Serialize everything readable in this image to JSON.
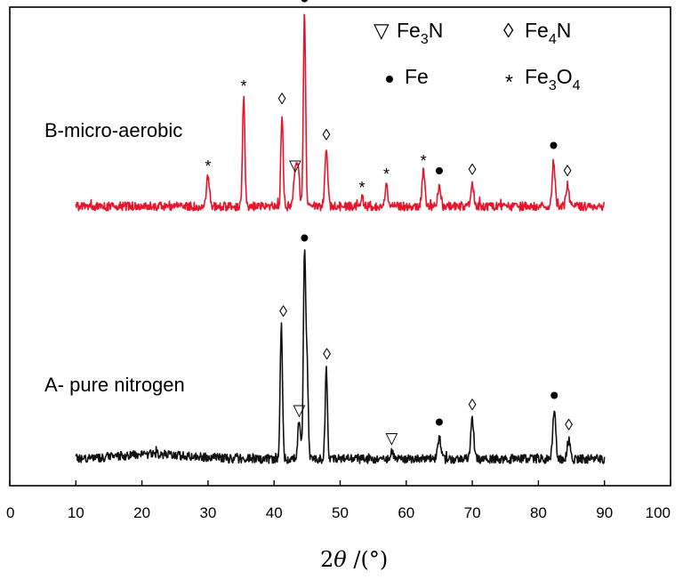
{
  "chart_data": {
    "type": "line",
    "xlabel": "2θ/(°)",
    "xlim": [
      0,
      100
    ],
    "xticks": [
      0,
      10,
      20,
      30,
      40,
      50,
      60,
      70,
      80,
      90,
      100
    ],
    "y_axis": "intensity (no scale shown)",
    "grid": false,
    "legend": {
      "placement": "top-right",
      "items": [
        {
          "symbol": "triangle-down",
          "label": "Fe3N"
        },
        {
          "symbol": "diamond",
          "label": "Fe4N"
        },
        {
          "symbol": "dot",
          "label": "Fe"
        },
        {
          "symbol": "asterisk",
          "label": "Fe3O4"
        }
      ]
    },
    "series": [
      {
        "name": "B-micro-aerobic",
        "color": "#e8142c",
        "x_range": [
          10,
          90
        ],
        "peaks": [
          {
            "x": 30.0,
            "height": 0.22,
            "phase": "Fe3O4"
          },
          {
            "x": 35.4,
            "height": 0.82,
            "phase": "Fe3O4"
          },
          {
            "x": 41.2,
            "height": 0.7,
            "phase": "Fe4N"
          },
          {
            "x": 43.2,
            "height": 0.22,
            "phase": "Fe3N"
          },
          {
            "x": 43.6,
            "height": 0.28
          },
          {
            "x": 44.6,
            "height": 1.45,
            "phase": "Fe"
          },
          {
            "x": 47.9,
            "height": 0.43,
            "phase": "Fe4N"
          },
          {
            "x": 53.3,
            "height": 0.06,
            "phase": "Fe3O4"
          },
          {
            "x": 57.0,
            "height": 0.16,
            "phase": "Fe3O4"
          },
          {
            "x": 62.6,
            "height": 0.26,
            "phase": "Fe3O4"
          },
          {
            "x": 65.0,
            "height": 0.16,
            "phase": "Fe"
          },
          {
            "x": 70.0,
            "height": 0.17,
            "phase": "Fe4N"
          },
          {
            "x": 82.3,
            "height": 0.35,
            "phase": "Fe"
          },
          {
            "x": 84.4,
            "height": 0.16,
            "phase": "Fe4N"
          }
        ],
        "annotations": [
          {
            "x": 30.0,
            "phase": "Fe3O4"
          },
          {
            "x": 35.4,
            "phase": "Fe3O4"
          },
          {
            "x": 41.2,
            "phase": "Fe4N"
          },
          {
            "x": 43.2,
            "phase": "Fe3N"
          },
          {
            "x": 44.6,
            "phase": "Fe"
          },
          {
            "x": 47.9,
            "phase": "Fe4N"
          },
          {
            "x": 53.3,
            "phase": "Fe3O4"
          },
          {
            "x": 57.0,
            "phase": "Fe3O4"
          },
          {
            "x": 62.6,
            "phase": "Fe3O4"
          },
          {
            "x": 65.0,
            "phase": "Fe"
          },
          {
            "x": 70.0,
            "phase": "Fe4N"
          },
          {
            "x": 82.3,
            "phase": "Fe"
          },
          {
            "x": 84.4,
            "phase": "Fe4N"
          }
        ]
      },
      {
        "name": "A- pure nitrogen",
        "color": "#111111",
        "x_range": [
          10,
          90
        ],
        "peaks": [
          {
            "x": 41.1,
            "height": 1.0,
            "phase": "Fe4N"
          },
          {
            "x": 43.8,
            "height": 0.28,
            "phase": "Fe3N"
          },
          {
            "x": 44.6,
            "height": 1.55,
            "phase": "Fe"
          },
          {
            "x": 45.0,
            "height": 0.7
          },
          {
            "x": 47.9,
            "height": 0.68,
            "phase": "Fe4N"
          },
          {
            "x": 57.8,
            "height": 0.07,
            "phase": "Fe3N"
          },
          {
            "x": 65.0,
            "height": 0.17,
            "phase": "Fe"
          },
          {
            "x": 70.0,
            "height": 0.3,
            "phase": "Fe4N"
          },
          {
            "x": 82.4,
            "height": 0.37,
            "phase": "Fe"
          },
          {
            "x": 84.6,
            "height": 0.15,
            "phase": "Fe4N"
          }
        ],
        "annotations": [
          {
            "x": 41.4,
            "phase": "Fe4N"
          },
          {
            "x": 43.8,
            "phase": "Fe3N"
          },
          {
            "x": 44.6,
            "phase": "Fe"
          },
          {
            "x": 48.0,
            "phase": "Fe4N"
          },
          {
            "x": 57.8,
            "phase": "Fe3N"
          },
          {
            "x": 65.0,
            "phase": "Fe"
          },
          {
            "x": 70.0,
            "phase": "Fe4N"
          },
          {
            "x": 82.4,
            "phase": "Fe"
          },
          {
            "x": 84.6,
            "phase": "Fe4N"
          }
        ]
      }
    ]
  }
}
